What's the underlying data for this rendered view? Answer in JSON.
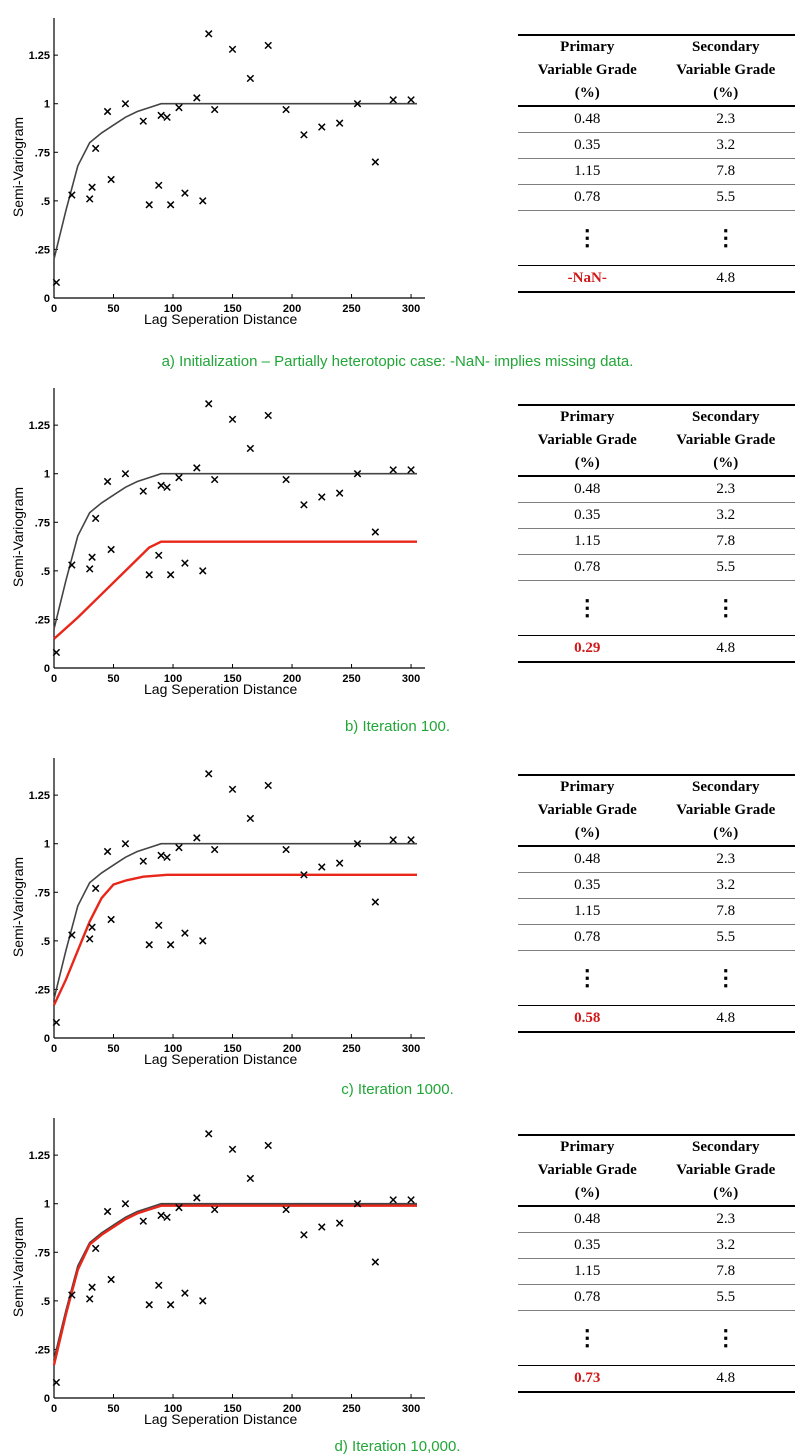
{
  "chart_data": [
    {
      "type": "scatter",
      "caption": "a) Initialization – Partially heterotopic case: -NaN- implies missing data.",
      "ylabel": "Semi-Variogram",
      "xlabel": "Lag Seperation Distance",
      "xlim": [
        0,
        305
      ],
      "ylim": [
        0,
        1.4
      ],
      "xticks": [
        0,
        50,
        100,
        150,
        200,
        250,
        300
      ],
      "ytick_labels": [
        {
          "v": 0,
          "t": "0"
        },
        {
          "v": 0.25,
          "t": ".25"
        },
        {
          "v": 0.5,
          "t": ".5"
        },
        {
          "v": 0.75,
          "t": ".75"
        },
        {
          "v": 1,
          "t": "1"
        },
        {
          "v": 1.25,
          "t": "1.25"
        }
      ],
      "points": [
        [
          2,
          0.08
        ],
        [
          15,
          0.53
        ],
        [
          30,
          0.51
        ],
        [
          32,
          0.57
        ],
        [
          35,
          0.77
        ],
        [
          45,
          0.96
        ],
        [
          48,
          0.61
        ],
        [
          60,
          1.0
        ],
        [
          75,
          0.91
        ],
        [
          80,
          0.48
        ],
        [
          88,
          0.58
        ],
        [
          90,
          0.94
        ],
        [
          95,
          0.93
        ],
        [
          98,
          0.48
        ],
        [
          105,
          0.98
        ],
        [
          110,
          0.54
        ],
        [
          120,
          1.03
        ],
        [
          125,
          0.5
        ],
        [
          130,
          1.36
        ],
        [
          135,
          0.97
        ],
        [
          150,
          1.28
        ],
        [
          165,
          1.13
        ],
        [
          180,
          1.3
        ],
        [
          195,
          0.97
        ],
        [
          210,
          0.84
        ],
        [
          225,
          0.88
        ],
        [
          240,
          0.9
        ],
        [
          255,
          1.0
        ],
        [
          270,
          0.7
        ],
        [
          285,
          1.02
        ],
        [
          300,
          1.02
        ]
      ],
      "model_fit": [
        [
          0,
          0.2
        ],
        [
          10,
          0.45
        ],
        [
          20,
          0.68
        ],
        [
          30,
          0.8
        ],
        [
          40,
          0.85
        ],
        [
          50,
          0.89
        ],
        [
          60,
          0.93
        ],
        [
          70,
          0.96
        ],
        [
          80,
          0.98
        ],
        [
          90,
          1.0
        ],
        [
          100,
          1.0
        ],
        [
          305,
          1.0
        ]
      ],
      "iteration_fit": null,
      "table": {
        "headers": [
          [
            "Primary",
            "Variable Grade",
            "(%)"
          ],
          [
            "Secondary",
            "Variable Grade",
            "(%)"
          ]
        ],
        "rows": [
          [
            "0.48",
            "2.3"
          ],
          [
            "0.35",
            "3.2"
          ],
          [
            "1.15",
            "7.8"
          ],
          [
            "0.78",
            "5.5"
          ]
        ],
        "ellipsis": "⋮",
        "last_row": [
          "-NaN-",
          "4.8"
        ]
      }
    },
    {
      "type": "scatter",
      "caption": "b) Iteration 100.",
      "ylabel": "Semi-Variogram",
      "xlabel": "Lag Seperation Distance",
      "xlim": [
        0,
        305
      ],
      "ylim": [
        0,
        1.4
      ],
      "xticks": [
        0,
        50,
        100,
        150,
        200,
        250,
        300
      ],
      "ytick_labels": [
        {
          "v": 0,
          "t": "0"
        },
        {
          "v": 0.25,
          "t": ".25"
        },
        {
          "v": 0.5,
          "t": ".5"
        },
        {
          "v": 0.75,
          "t": ".75"
        },
        {
          "v": 1,
          "t": "1"
        },
        {
          "v": 1.25,
          "t": "1.25"
        }
      ],
      "points": [
        [
          2,
          0.08
        ],
        [
          15,
          0.53
        ],
        [
          30,
          0.51
        ],
        [
          32,
          0.57
        ],
        [
          35,
          0.77
        ],
        [
          45,
          0.96
        ],
        [
          48,
          0.61
        ],
        [
          60,
          1.0
        ],
        [
          75,
          0.91
        ],
        [
          80,
          0.48
        ],
        [
          88,
          0.58
        ],
        [
          90,
          0.94
        ],
        [
          95,
          0.93
        ],
        [
          98,
          0.48
        ],
        [
          105,
          0.98
        ],
        [
          110,
          0.54
        ],
        [
          120,
          1.03
        ],
        [
          125,
          0.5
        ],
        [
          130,
          1.36
        ],
        [
          135,
          0.97
        ],
        [
          150,
          1.28
        ],
        [
          165,
          1.13
        ],
        [
          180,
          1.3
        ],
        [
          195,
          0.97
        ],
        [
          210,
          0.84
        ],
        [
          225,
          0.88
        ],
        [
          240,
          0.9
        ],
        [
          255,
          1.0
        ],
        [
          270,
          0.7
        ],
        [
          285,
          1.02
        ],
        [
          300,
          1.02
        ]
      ],
      "model_fit": [
        [
          0,
          0.2
        ],
        [
          10,
          0.45
        ],
        [
          20,
          0.68
        ],
        [
          30,
          0.8
        ],
        [
          40,
          0.85
        ],
        [
          50,
          0.89
        ],
        [
          60,
          0.93
        ],
        [
          70,
          0.96
        ],
        [
          80,
          0.98
        ],
        [
          90,
          1.0
        ],
        [
          100,
          1.0
        ],
        [
          305,
          1.0
        ]
      ],
      "iteration_fit": [
        [
          0,
          0.15
        ],
        [
          20,
          0.26
        ],
        [
          40,
          0.38
        ],
        [
          60,
          0.5
        ],
        [
          80,
          0.62
        ],
        [
          90,
          0.65
        ],
        [
          305,
          0.65
        ]
      ],
      "table": {
        "headers": [
          [
            "Primary",
            "Variable Grade",
            "(%)"
          ],
          [
            "Secondary",
            "Variable Grade",
            "(%)"
          ]
        ],
        "rows": [
          [
            "0.48",
            "2.3"
          ],
          [
            "0.35",
            "3.2"
          ],
          [
            "1.15",
            "7.8"
          ],
          [
            "0.78",
            "5.5"
          ]
        ],
        "ellipsis": "⋮",
        "last_row": [
          "0.29",
          "4.8"
        ]
      }
    },
    {
      "type": "scatter",
      "caption": "c)  Iteration 1000.",
      "ylabel": "Semi-Variogram",
      "xlabel": "Lag Seperation Distance",
      "xlim": [
        0,
        305
      ],
      "ylim": [
        0,
        1.4
      ],
      "xticks": [
        0,
        50,
        100,
        150,
        200,
        250,
        300
      ],
      "ytick_labels": [
        {
          "v": 0,
          "t": "0"
        },
        {
          "v": 0.25,
          "t": ".25"
        },
        {
          "v": 0.5,
          "t": ".5"
        },
        {
          "v": 0.75,
          "t": ".75"
        },
        {
          "v": 1,
          "t": "1"
        },
        {
          "v": 1.25,
          "t": "1.25"
        }
      ],
      "points": [
        [
          2,
          0.08
        ],
        [
          15,
          0.53
        ],
        [
          30,
          0.51
        ],
        [
          32,
          0.57
        ],
        [
          35,
          0.77
        ],
        [
          45,
          0.96
        ],
        [
          48,
          0.61
        ],
        [
          60,
          1.0
        ],
        [
          75,
          0.91
        ],
        [
          80,
          0.48
        ],
        [
          88,
          0.58
        ],
        [
          90,
          0.94
        ],
        [
          95,
          0.93
        ],
        [
          98,
          0.48
        ],
        [
          105,
          0.98
        ],
        [
          110,
          0.54
        ],
        [
          120,
          1.03
        ],
        [
          125,
          0.5
        ],
        [
          130,
          1.36
        ],
        [
          135,
          0.97
        ],
        [
          150,
          1.28
        ],
        [
          165,
          1.13
        ],
        [
          180,
          1.3
        ],
        [
          195,
          0.97
        ],
        [
          210,
          0.84
        ],
        [
          225,
          0.88
        ],
        [
          240,
          0.9
        ],
        [
          255,
          1.0
        ],
        [
          270,
          0.7
        ],
        [
          285,
          1.02
        ],
        [
          300,
          1.02
        ]
      ],
      "model_fit": [
        [
          0,
          0.2
        ],
        [
          10,
          0.45
        ],
        [
          20,
          0.68
        ],
        [
          30,
          0.8
        ],
        [
          40,
          0.85
        ],
        [
          50,
          0.89
        ],
        [
          60,
          0.93
        ],
        [
          70,
          0.96
        ],
        [
          80,
          0.98
        ],
        [
          90,
          1.0
        ],
        [
          100,
          1.0
        ],
        [
          305,
          1.0
        ]
      ],
      "iteration_fit": [
        [
          0,
          0.17
        ],
        [
          10,
          0.3
        ],
        [
          20,
          0.45
        ],
        [
          30,
          0.6
        ],
        [
          40,
          0.72
        ],
        [
          50,
          0.79
        ],
        [
          60,
          0.81
        ],
        [
          75,
          0.83
        ],
        [
          95,
          0.84
        ],
        [
          305,
          0.84
        ]
      ],
      "table": {
        "headers": [
          [
            "Primary",
            "Variable Grade",
            "(%)"
          ],
          [
            "Secondary",
            "Variable Grade",
            "(%)"
          ]
        ],
        "rows": [
          [
            "0.48",
            "2.3"
          ],
          [
            "0.35",
            "3.2"
          ],
          [
            "1.15",
            "7.8"
          ],
          [
            "0.78",
            "5.5"
          ]
        ],
        "ellipsis": "⋮",
        "last_row": [
          "0.58",
          "4.8"
        ]
      }
    },
    {
      "type": "scatter",
      "caption": "d) Iteration 10,000.",
      "ylabel": "Semi-Variogram",
      "xlabel": "Lag Seperation Distance",
      "xlim": [
        0,
        305
      ],
      "ylim": [
        0,
        1.4
      ],
      "xticks": [
        0,
        50,
        100,
        150,
        200,
        250,
        300
      ],
      "ytick_labels": [
        {
          "v": 0,
          "t": "0"
        },
        {
          "v": 0.25,
          "t": ".25"
        },
        {
          "v": 0.5,
          "t": ".5"
        },
        {
          "v": 0.75,
          "t": ".75"
        },
        {
          "v": 1,
          "t": "1"
        },
        {
          "v": 1.25,
          "t": "1.25"
        }
      ],
      "points": [
        [
          2,
          0.08
        ],
        [
          15,
          0.53
        ],
        [
          30,
          0.51
        ],
        [
          32,
          0.57
        ],
        [
          35,
          0.77
        ],
        [
          45,
          0.96
        ],
        [
          48,
          0.61
        ],
        [
          60,
          1.0
        ],
        [
          75,
          0.91
        ],
        [
          80,
          0.48
        ],
        [
          88,
          0.58
        ],
        [
          90,
          0.94
        ],
        [
          95,
          0.93
        ],
        [
          98,
          0.48
        ],
        [
          105,
          0.98
        ],
        [
          110,
          0.54
        ],
        [
          120,
          1.03
        ],
        [
          125,
          0.5
        ],
        [
          130,
          1.36
        ],
        [
          135,
          0.97
        ],
        [
          150,
          1.28
        ],
        [
          165,
          1.13
        ],
        [
          180,
          1.3
        ],
        [
          195,
          0.97
        ],
        [
          210,
          0.84
        ],
        [
          225,
          0.88
        ],
        [
          240,
          0.9
        ],
        [
          255,
          1.0
        ],
        [
          270,
          0.7
        ],
        [
          285,
          1.02
        ],
        [
          300,
          1.02
        ]
      ],
      "model_fit": [
        [
          0,
          0.2
        ],
        [
          10,
          0.45
        ],
        [
          20,
          0.68
        ],
        [
          30,
          0.8
        ],
        [
          40,
          0.85
        ],
        [
          50,
          0.89
        ],
        [
          60,
          0.93
        ],
        [
          70,
          0.96
        ],
        [
          80,
          0.98
        ],
        [
          90,
          1.0
        ],
        [
          100,
          1.0
        ],
        [
          305,
          1.0
        ]
      ],
      "iteration_fit": [
        [
          0,
          0.17
        ],
        [
          10,
          0.43
        ],
        [
          20,
          0.66
        ],
        [
          30,
          0.79
        ],
        [
          40,
          0.84
        ],
        [
          50,
          0.88
        ],
        [
          60,
          0.92
        ],
        [
          70,
          0.95
        ],
        [
          80,
          0.97
        ],
        [
          90,
          0.99
        ],
        [
          100,
          0.99
        ],
        [
          305,
          0.99
        ]
      ],
      "table": {
        "headers": [
          [
            "Primary",
            "Variable Grade",
            "(%)"
          ],
          [
            "Secondary",
            "Variable Grade",
            "(%)"
          ]
        ],
        "rows": [
          [
            "0.48",
            "2.3"
          ],
          [
            "0.35",
            "3.2"
          ],
          [
            "1.15",
            "7.8"
          ],
          [
            "0.78",
            "5.5"
          ]
        ],
        "ellipsis": "⋮",
        "last_row": [
          "0.73",
          "4.8"
        ]
      }
    }
  ],
  "colors": {
    "model_fit": "#444444",
    "iteration_fit": "#e8261a",
    "caption": "#21a637",
    "highlight": "#d01818"
  }
}
